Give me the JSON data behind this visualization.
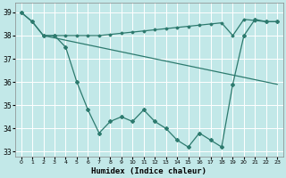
{
  "title": "",
  "xlabel": "Humidex (Indice chaleur)",
  "bg_color": "#c2e8e8",
  "grid_color": "#ffffff",
  "line_color": "#2d7a6e",
  "xlim": [
    -0.5,
    23.5
  ],
  "ylim": [
    32.8,
    39.4
  ],
  "yticks": [
    33,
    34,
    35,
    36,
    37,
    38,
    39
  ],
  "xticks": [
    0,
    1,
    2,
    3,
    4,
    5,
    6,
    7,
    8,
    9,
    10,
    11,
    12,
    13,
    14,
    15,
    16,
    17,
    18,
    19,
    20,
    21,
    22,
    23
  ],
  "line1_x": [
    0,
    1,
    2,
    3,
    4,
    5,
    6,
    7,
    8,
    9,
    10,
    11,
    12,
    13,
    14,
    15,
    16,
    17,
    18,
    19,
    20,
    21,
    22,
    23
  ],
  "line1_y": [
    39.0,
    38.6,
    38.0,
    38.0,
    37.5,
    36.0,
    34.8,
    33.8,
    34.3,
    34.5,
    34.3,
    34.8,
    34.3,
    34.0,
    33.5,
    33.2,
    33.8,
    33.5,
    33.2,
    35.9,
    38.0,
    38.7,
    38.6,
    38.6
  ],
  "line2_x": [
    0,
    1,
    2,
    3,
    4,
    5,
    6,
    7,
    8,
    9,
    10,
    11,
    12,
    13,
    14,
    15,
    16,
    17,
    18,
    19,
    20,
    21,
    22,
    23
  ],
  "line2_y": [
    39.0,
    38.6,
    38.0,
    38.0,
    38.0,
    38.0,
    38.0,
    38.0,
    38.05,
    38.1,
    38.15,
    38.2,
    38.25,
    38.3,
    38.35,
    38.4,
    38.45,
    38.5,
    38.55,
    38.0,
    38.7,
    38.65,
    38.6,
    38.6
  ],
  "line3_x": [
    2,
    23
  ],
  "line3_y": [
    38.0,
    35.9
  ]
}
